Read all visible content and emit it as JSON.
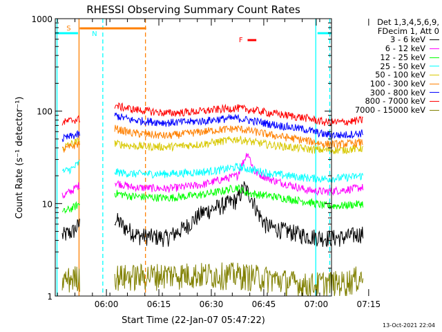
{
  "chart_data": {
    "type": "line",
    "title": "RHESSI Observing Summary Count Rates",
    "xlabel": "Start Time (22-Jan-07 05:47:22)",
    "ylabel": "Count Rate (s⁻¹ detector⁻¹)",
    "yscale": "log",
    "ylim": [
      1,
      1000
    ],
    "yticks": [
      {
        "v": 1,
        "label": "1"
      },
      {
        "v": 10,
        "label": "10"
      },
      {
        "v": 100,
        "label": "100"
      },
      {
        "v": 1000,
        "label": "1000"
      }
    ],
    "xlim_min": [
      -2,
      77
    ],
    "xticks": [
      {
        "t": 13,
        "label": "06:00"
      },
      {
        "t": 28,
        "label": "06:15"
      },
      {
        "t": 43,
        "label": "06:30"
      },
      {
        "t": 58,
        "label": "06:45"
      },
      {
        "t": 73,
        "label": "07:00"
      },
      {
        "t": 88,
        "label": "07:15"
      }
    ],
    "legend_header": [
      "Det 1,3,4,5,6,9,",
      "FDecim 1, Att 0"
    ],
    "legend_position": "right",
    "series": [
      {
        "name": "3 - 6 keV",
        "color": "#000000",
        "pre": [
          [
            0,
            4.5
          ],
          [
            3,
            5
          ],
          [
            5,
            6
          ]
        ],
        "post": [
          [
            15,
            7
          ],
          [
            18,
            5.5
          ],
          [
            22,
            4.5
          ],
          [
            30,
            4.3
          ],
          [
            35,
            5.5
          ],
          [
            40,
            8
          ],
          [
            47,
            10
          ],
          [
            50,
            11
          ],
          [
            52,
            15
          ],
          [
            54,
            12
          ],
          [
            56,
            8
          ],
          [
            58,
            6
          ],
          [
            60,
            5.5
          ],
          [
            65,
            5
          ],
          [
            70,
            4.5
          ],
          [
            75,
            4.3
          ],
          [
            80,
            4.3
          ],
          [
            86,
            4.8
          ]
        ]
      },
      {
        "name": "6 - 12 keV",
        "color": "#ff00ff",
        "pre": [
          [
            0,
            12
          ],
          [
            3,
            14
          ],
          [
            5,
            16
          ]
        ],
        "post": [
          [
            15,
            17
          ],
          [
            20,
            15
          ],
          [
            30,
            14.5
          ],
          [
            40,
            16
          ],
          [
            45,
            18
          ],
          [
            50,
            20
          ],
          [
            53,
            36
          ],
          [
            55,
            22
          ],
          [
            60,
            18
          ],
          [
            65,
            16
          ],
          [
            70,
            14
          ],
          [
            75,
            13.5
          ],
          [
            80,
            14
          ],
          [
            86,
            15
          ]
        ]
      },
      {
        "name": "12 - 25 keV",
        "color": "#00ff00",
        "pre": [
          [
            0,
            8
          ],
          [
            3,
            9
          ],
          [
            5,
            10
          ]
        ],
        "post": [
          [
            15,
            13
          ],
          [
            20,
            12
          ],
          [
            30,
            11.5
          ],
          [
            40,
            12.5
          ],
          [
            45,
            13.5
          ],
          [
            50,
            15
          ],
          [
            53,
            13
          ],
          [
            60,
            12
          ],
          [
            70,
            10.5
          ],
          [
            75,
            9.5
          ],
          [
            80,
            9.5
          ],
          [
            86,
            10
          ]
        ]
      },
      {
        "name": "25 - 50 keV",
        "color": "#00ffff",
        "pre": [
          [
            0,
            22
          ],
          [
            3,
            24
          ],
          [
            5,
            28
          ]
        ],
        "post": [
          [
            15,
            22
          ],
          [
            20,
            21
          ],
          [
            30,
            21
          ],
          [
            40,
            22
          ],
          [
            45,
            23
          ],
          [
            50,
            25
          ],
          [
            55,
            23
          ],
          [
            60,
            21
          ],
          [
            70,
            19
          ],
          [
            75,
            18.5
          ],
          [
            80,
            19
          ],
          [
            86,
            20
          ]
        ]
      },
      {
        "name": "50 - 100 keV",
        "color": "#d8c800",
        "pre": [
          [
            0,
            40
          ],
          [
            3,
            45
          ],
          [
            5,
            48
          ]
        ],
        "post": [
          [
            15,
            45
          ],
          [
            20,
            42
          ],
          [
            30,
            41
          ],
          [
            40,
            44
          ],
          [
            45,
            47
          ],
          [
            50,
            50
          ],
          [
            55,
            46
          ],
          [
            60,
            43
          ],
          [
            70,
            39
          ],
          [
            75,
            38
          ],
          [
            80,
            38
          ],
          [
            86,
            40
          ]
        ]
      },
      {
        "name": "100 - 300 keV",
        "color": "#ff8000",
        "pre": [
          [
            0,
            38
          ],
          [
            3,
            42
          ],
          [
            5,
            45
          ]
        ],
        "post": [
          [
            15,
            65
          ],
          [
            20,
            58
          ],
          [
            30,
            54
          ],
          [
            40,
            60
          ],
          [
            45,
            63
          ],
          [
            50,
            65
          ],
          [
            55,
            60
          ],
          [
            60,
            55
          ],
          [
            70,
            48
          ],
          [
            75,
            44
          ],
          [
            80,
            44
          ],
          [
            86,
            46
          ]
        ]
      },
      {
        "name": "300 - 800 keV",
        "color": "#0000ff",
        "pre": [
          [
            0,
            50
          ],
          [
            3,
            54
          ],
          [
            5,
            56
          ]
        ],
        "post": [
          [
            15,
            90
          ],
          [
            20,
            80
          ],
          [
            30,
            75
          ],
          [
            40,
            78
          ],
          [
            45,
            82
          ],
          [
            50,
            84
          ],
          [
            55,
            78
          ],
          [
            60,
            72
          ],
          [
            70,
            63
          ],
          [
            75,
            56
          ],
          [
            80,
            55
          ],
          [
            86,
            58
          ]
        ]
      },
      {
        "name": "800 - 7000 keV",
        "color": "#ff0000",
        "pre": [
          [
            0,
            75
          ],
          [
            3,
            80
          ],
          [
            5,
            82
          ]
        ],
        "post": [
          [
            15,
            115
          ],
          [
            20,
            105
          ],
          [
            30,
            95
          ],
          [
            40,
            100
          ],
          [
            45,
            105
          ],
          [
            50,
            108
          ],
          [
            55,
            102
          ],
          [
            60,
            95
          ],
          [
            70,
            84
          ],
          [
            75,
            76
          ],
          [
            80,
            76
          ],
          [
            86,
            80
          ]
        ]
      },
      {
        "name": "7000 - 15000 keV",
        "color": "#808000",
        "pre": [
          [
            0,
            1.8
          ],
          [
            5,
            2.0
          ]
        ],
        "post": [
          [
            15,
            2.0
          ],
          [
            20,
            2.0
          ],
          [
            30,
            2.1
          ],
          [
            40,
            2.1
          ],
          [
            50,
            2.1
          ],
          [
            60,
            1.9
          ],
          [
            70,
            1.6
          ],
          [
            75,
            1.7
          ],
          [
            80,
            1.7
          ],
          [
            86,
            2.0
          ]
        ]
      }
    ],
    "annotations": {
      "S": {
        "label": "S",
        "color": "#ff8000"
      },
      "N": {
        "label": "N",
        "color": "#00ffff"
      },
      "F": {
        "label": "F",
        "color": "#ff0000"
      }
    },
    "timestamp": "13-Oct-2021 22:04"
  }
}
